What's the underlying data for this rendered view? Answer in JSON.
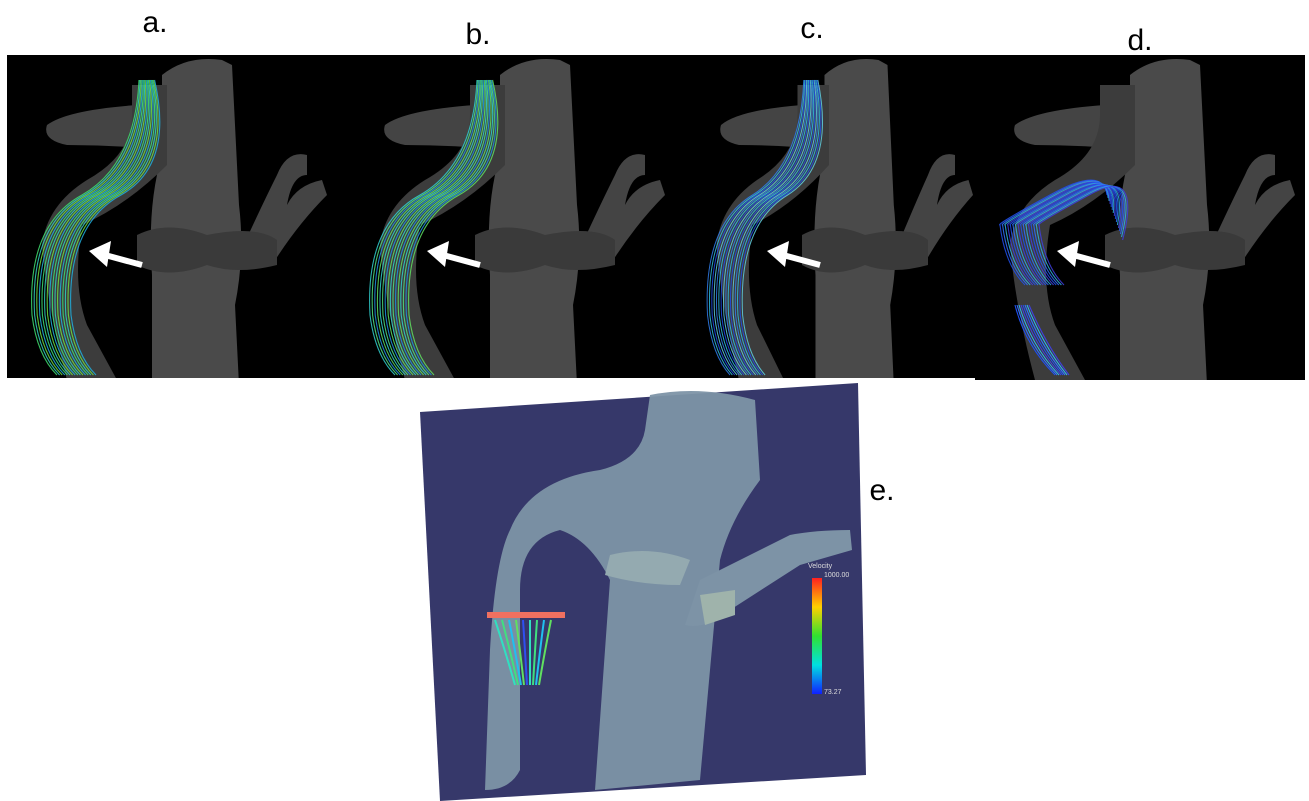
{
  "panels": [
    {
      "label": "a."
    },
    {
      "label": "b."
    },
    {
      "label": "c."
    },
    {
      "label": "d."
    },
    {
      "label": "e."
    }
  ],
  "colorbar": {
    "title": "Velocity",
    "max": "1000.00",
    "min": "73.27"
  }
}
